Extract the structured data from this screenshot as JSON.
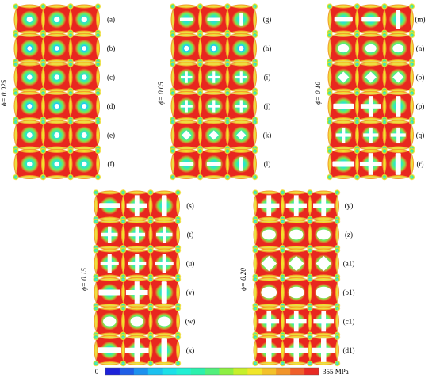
{
  "panel_groups": [
    {
      "phi_label": "ϕ= 0.025",
      "labels": [
        "(a)",
        "(b)",
        "(c)",
        "(d)",
        "(e)",
        "(f)"
      ],
      "holes": [
        [
          "circle",
          0.4
        ],
        [
          "ring",
          0.42
        ],
        [
          "circle",
          0.36
        ],
        [
          "ring",
          0.44
        ],
        [
          "circle",
          0.38
        ],
        [
          "circle",
          0.36
        ]
      ]
    },
    {
      "phi_label": "ϕ= 0.05",
      "labels": [
        "(g)",
        "(h)",
        "(i)",
        "(j)",
        "(k)",
        "(l)"
      ],
      "holes": [
        [
          "hbar",
          0.5
        ],
        [
          "ring",
          0.46
        ],
        [
          "cross",
          0.44
        ],
        [
          "cross",
          0.46
        ],
        [
          "diamond",
          0.46
        ],
        [
          "hbar",
          0.54
        ]
      ]
    },
    {
      "phi_label": "ϕ= 0.10",
      "labels": [
        "(m)",
        "(n)",
        "(o)",
        "(p)",
        "(q)",
        "(r)"
      ],
      "holes": [
        [
          "hbar",
          0.7
        ],
        [
          "ellipse",
          0.56
        ],
        [
          "diamond",
          0.54
        ],
        [
          "hbar",
          0.78
        ],
        [
          "cross",
          0.58
        ],
        [
          "hbar",
          0.84
        ]
      ]
    },
    {
      "phi_label": "ϕ= 0.15",
      "labels": [
        "(s)",
        "(t)",
        "(u)",
        "(v)",
        "(w)",
        "(x)"
      ],
      "holes": [
        [
          "hbar",
          0.8
        ],
        [
          "cross",
          0.62
        ],
        [
          "cross",
          0.7
        ],
        [
          "hbar",
          0.84
        ],
        [
          "ellipse",
          0.66
        ],
        [
          "hbar",
          0.9
        ]
      ]
    },
    {
      "phi_label": "ϕ= 0.20",
      "labels": [
        "(y)",
        "(z)",
        "(a1)",
        "(b1)",
        "(c1)",
        "(d1)"
      ],
      "holes": [
        [
          "cross",
          0.8
        ],
        [
          "ellipse",
          0.7
        ],
        [
          "diamond",
          0.74
        ],
        [
          "ellipse",
          0.8
        ],
        [
          "cross",
          0.78
        ],
        [
          "cross",
          0.9
        ]
      ]
    }
  ],
  "colorbar": {
    "min_label": "0",
    "max_label": "355 MPa",
    "colors": [
      "#1d22d9",
      "#1f5ee6",
      "#1d91ee",
      "#1cc0ef",
      "#1ce0e8",
      "#22efd3",
      "#2cf0ad",
      "#52ef7c",
      "#8def43",
      "#c6ef2b",
      "#f0e62a",
      "#f3c12a",
      "#f1942a",
      "#ef5f2a",
      "#e82a24"
    ]
  }
}
